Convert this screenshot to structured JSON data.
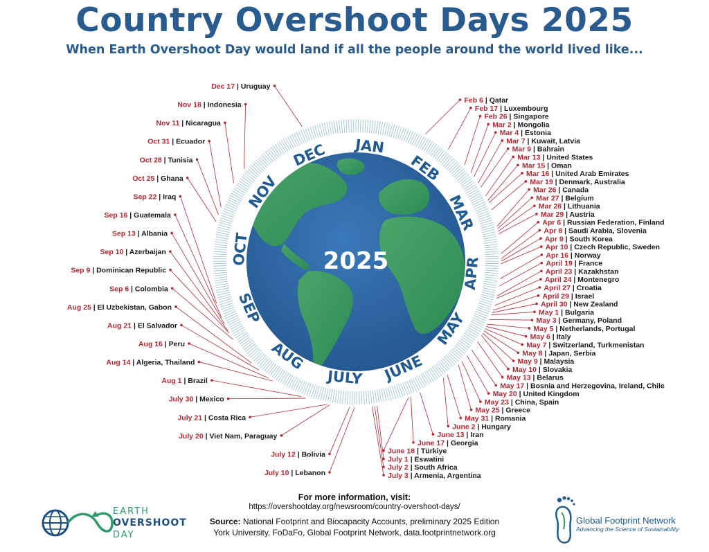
{
  "title": "Country Overshoot Days 2025",
  "subtitle": "When Earth Overshoot Day would land if all the people around the world lived like...",
  "center_label": "2025",
  "months": [
    "JAN",
    "FEB",
    "MAR",
    "APR",
    "MAY",
    "JUNE",
    "JULY",
    "AUG",
    "SEP",
    "OCT",
    "NOV",
    "DEC"
  ],
  "colors": {
    "title": "#2a5b8e",
    "date": "#b22832",
    "leader": "#b22832",
    "ocean": "#2f66a3",
    "land": "#3d9a5b",
    "ring": "#1f5a91"
  },
  "chart_data": {
    "type": "radial-timeline",
    "entries": [
      {
        "date": "Feb 6",
        "country": "Qatar"
      },
      {
        "date": "Feb 17",
        "country": "Luxembourg"
      },
      {
        "date": "Feb 26",
        "country": "Singapore"
      },
      {
        "date": "Mar 2",
        "country": "Mongolia"
      },
      {
        "date": "Mar 4",
        "country": "Estonia"
      },
      {
        "date": "Mar 7",
        "country": "Kuwait, Latvia"
      },
      {
        "date": "Mar 9",
        "country": "Bahrain"
      },
      {
        "date": "Mar 13",
        "country": "United States"
      },
      {
        "date": "Mar 15",
        "country": "Oman"
      },
      {
        "date": "Mar 16",
        "country": "United Arab Emirates"
      },
      {
        "date": "Mar 19",
        "country": "Denmark, Australia"
      },
      {
        "date": "Mar 26",
        "country": "Canada"
      },
      {
        "date": "Mar 27",
        "country": "Belgium"
      },
      {
        "date": "Mar 28",
        "country": "Lithuania"
      },
      {
        "date": "Mar 29",
        "country": "Austria"
      },
      {
        "date": "Apr 6",
        "country": "Russian Federation, Finland"
      },
      {
        "date": "Apr 8",
        "country": "Saudi Arabia, Slovenia"
      },
      {
        "date": "Apr 9",
        "country": "South Korea"
      },
      {
        "date": "Apr 10",
        "country": "Czech Republic, Sweden"
      },
      {
        "date": "Apr 16",
        "country": "Norway"
      },
      {
        "date": "April 19",
        "country": "France"
      },
      {
        "date": "April 23",
        "country": "Kazakhstan"
      },
      {
        "date": "April 24",
        "country": "Montenegro"
      },
      {
        "date": "April 27",
        "country": "Croatia"
      },
      {
        "date": "April 29",
        "country": "Israel"
      },
      {
        "date": "April 30",
        "country": "New Zealand"
      },
      {
        "date": "May 1",
        "country": "Bulgaria"
      },
      {
        "date": "May 3",
        "country": "Germany, Poland"
      },
      {
        "date": "May 5",
        "country": "Netherlands, Portugal"
      },
      {
        "date": "May 6",
        "country": "Italy"
      },
      {
        "date": "May 7",
        "country": "Switzerland, Turkmenistan"
      },
      {
        "date": "May 8",
        "country": "Japan, Serbia"
      },
      {
        "date": "May 9",
        "country": "Malaysia"
      },
      {
        "date": "May 10",
        "country": "Slovakia"
      },
      {
        "date": "May 13",
        "country": "Belarus"
      },
      {
        "date": "May 17",
        "country": "Bosnia and Herzegovina, Ireland, Chile"
      },
      {
        "date": "May 20",
        "country": "United Kingdom"
      },
      {
        "date": "May 23",
        "country": "China, Spain"
      },
      {
        "date": "May 25",
        "country": "Greece"
      },
      {
        "date": "May 31",
        "country": "Romania"
      },
      {
        "date": "June 2",
        "country": "Hungary"
      },
      {
        "date": "June 13",
        "country": "Iran"
      },
      {
        "date": "June 17",
        "country": "Georgia"
      },
      {
        "date": "June 18",
        "country": "Türkiye"
      },
      {
        "date": "July 1",
        "country": "Eswatini"
      },
      {
        "date": "July 2",
        "country": "South Africa"
      },
      {
        "date": "July 3",
        "country": "Armenia, Argentina"
      },
      {
        "date": "July 10",
        "country": "Lebanon"
      },
      {
        "date": "July 12",
        "country": "Bolivia"
      },
      {
        "date": "July 20",
        "country": "Viet Nam, Paraguay"
      },
      {
        "date": "July 21",
        "country": "Costa Rica"
      },
      {
        "date": "July 30",
        "country": "Mexico"
      },
      {
        "date": "Aug 1",
        "country": "Brazil"
      },
      {
        "date": "Aug 14",
        "country": "Algeria, Thailand"
      },
      {
        "date": "Aug 16",
        "country": "Peru"
      },
      {
        "date": "Aug 21",
        "country": "El Salvador"
      },
      {
        "date": "Aug 25",
        "country": "El Uzbekistan, Gabon"
      },
      {
        "date": "Sep 6",
        "country": "Colombia"
      },
      {
        "date": "Sep 9",
        "country": "Dominican Republic"
      },
      {
        "date": "Sep 10",
        "country": "Azerbaijan"
      },
      {
        "date": "Sep 13",
        "country": "Albania"
      },
      {
        "date": "Sep 16",
        "country": "Guatemala"
      },
      {
        "date": "Sep 22",
        "country": "Iraq"
      },
      {
        "date": "Oct 25",
        "country": "Ghana"
      },
      {
        "date": "Oct 28",
        "country": "Tunisia"
      },
      {
        "date": "Oct 31",
        "country": "Ecuador"
      },
      {
        "date": "Nov 11",
        "country": "Nicaragua"
      },
      {
        "date": "Nov 18",
        "country": "Indonesia"
      },
      {
        "date": "Dec 17",
        "country": "Uruguay"
      }
    ]
  },
  "footer": {
    "info_heading": "For more information, visit:",
    "info_url": "https://overshootday.org/newsroom/country-overshoot-days/",
    "source_label": "Source:",
    "source_text": "National Footprint and Biocapacity Accounts, preliminary 2025 Edition",
    "source_line2": "York University, FoDaFo, Global Footprint Network, data.footprintnetwork.org"
  },
  "logos": {
    "eod_line1": "EARTH",
    "eod_line2": "OVERSHOOT",
    "eod_line3": "DAY",
    "gfn_name": "Global Footprint Network",
    "gfn_tagline": "Advancing the Science of Sustainability"
  }
}
